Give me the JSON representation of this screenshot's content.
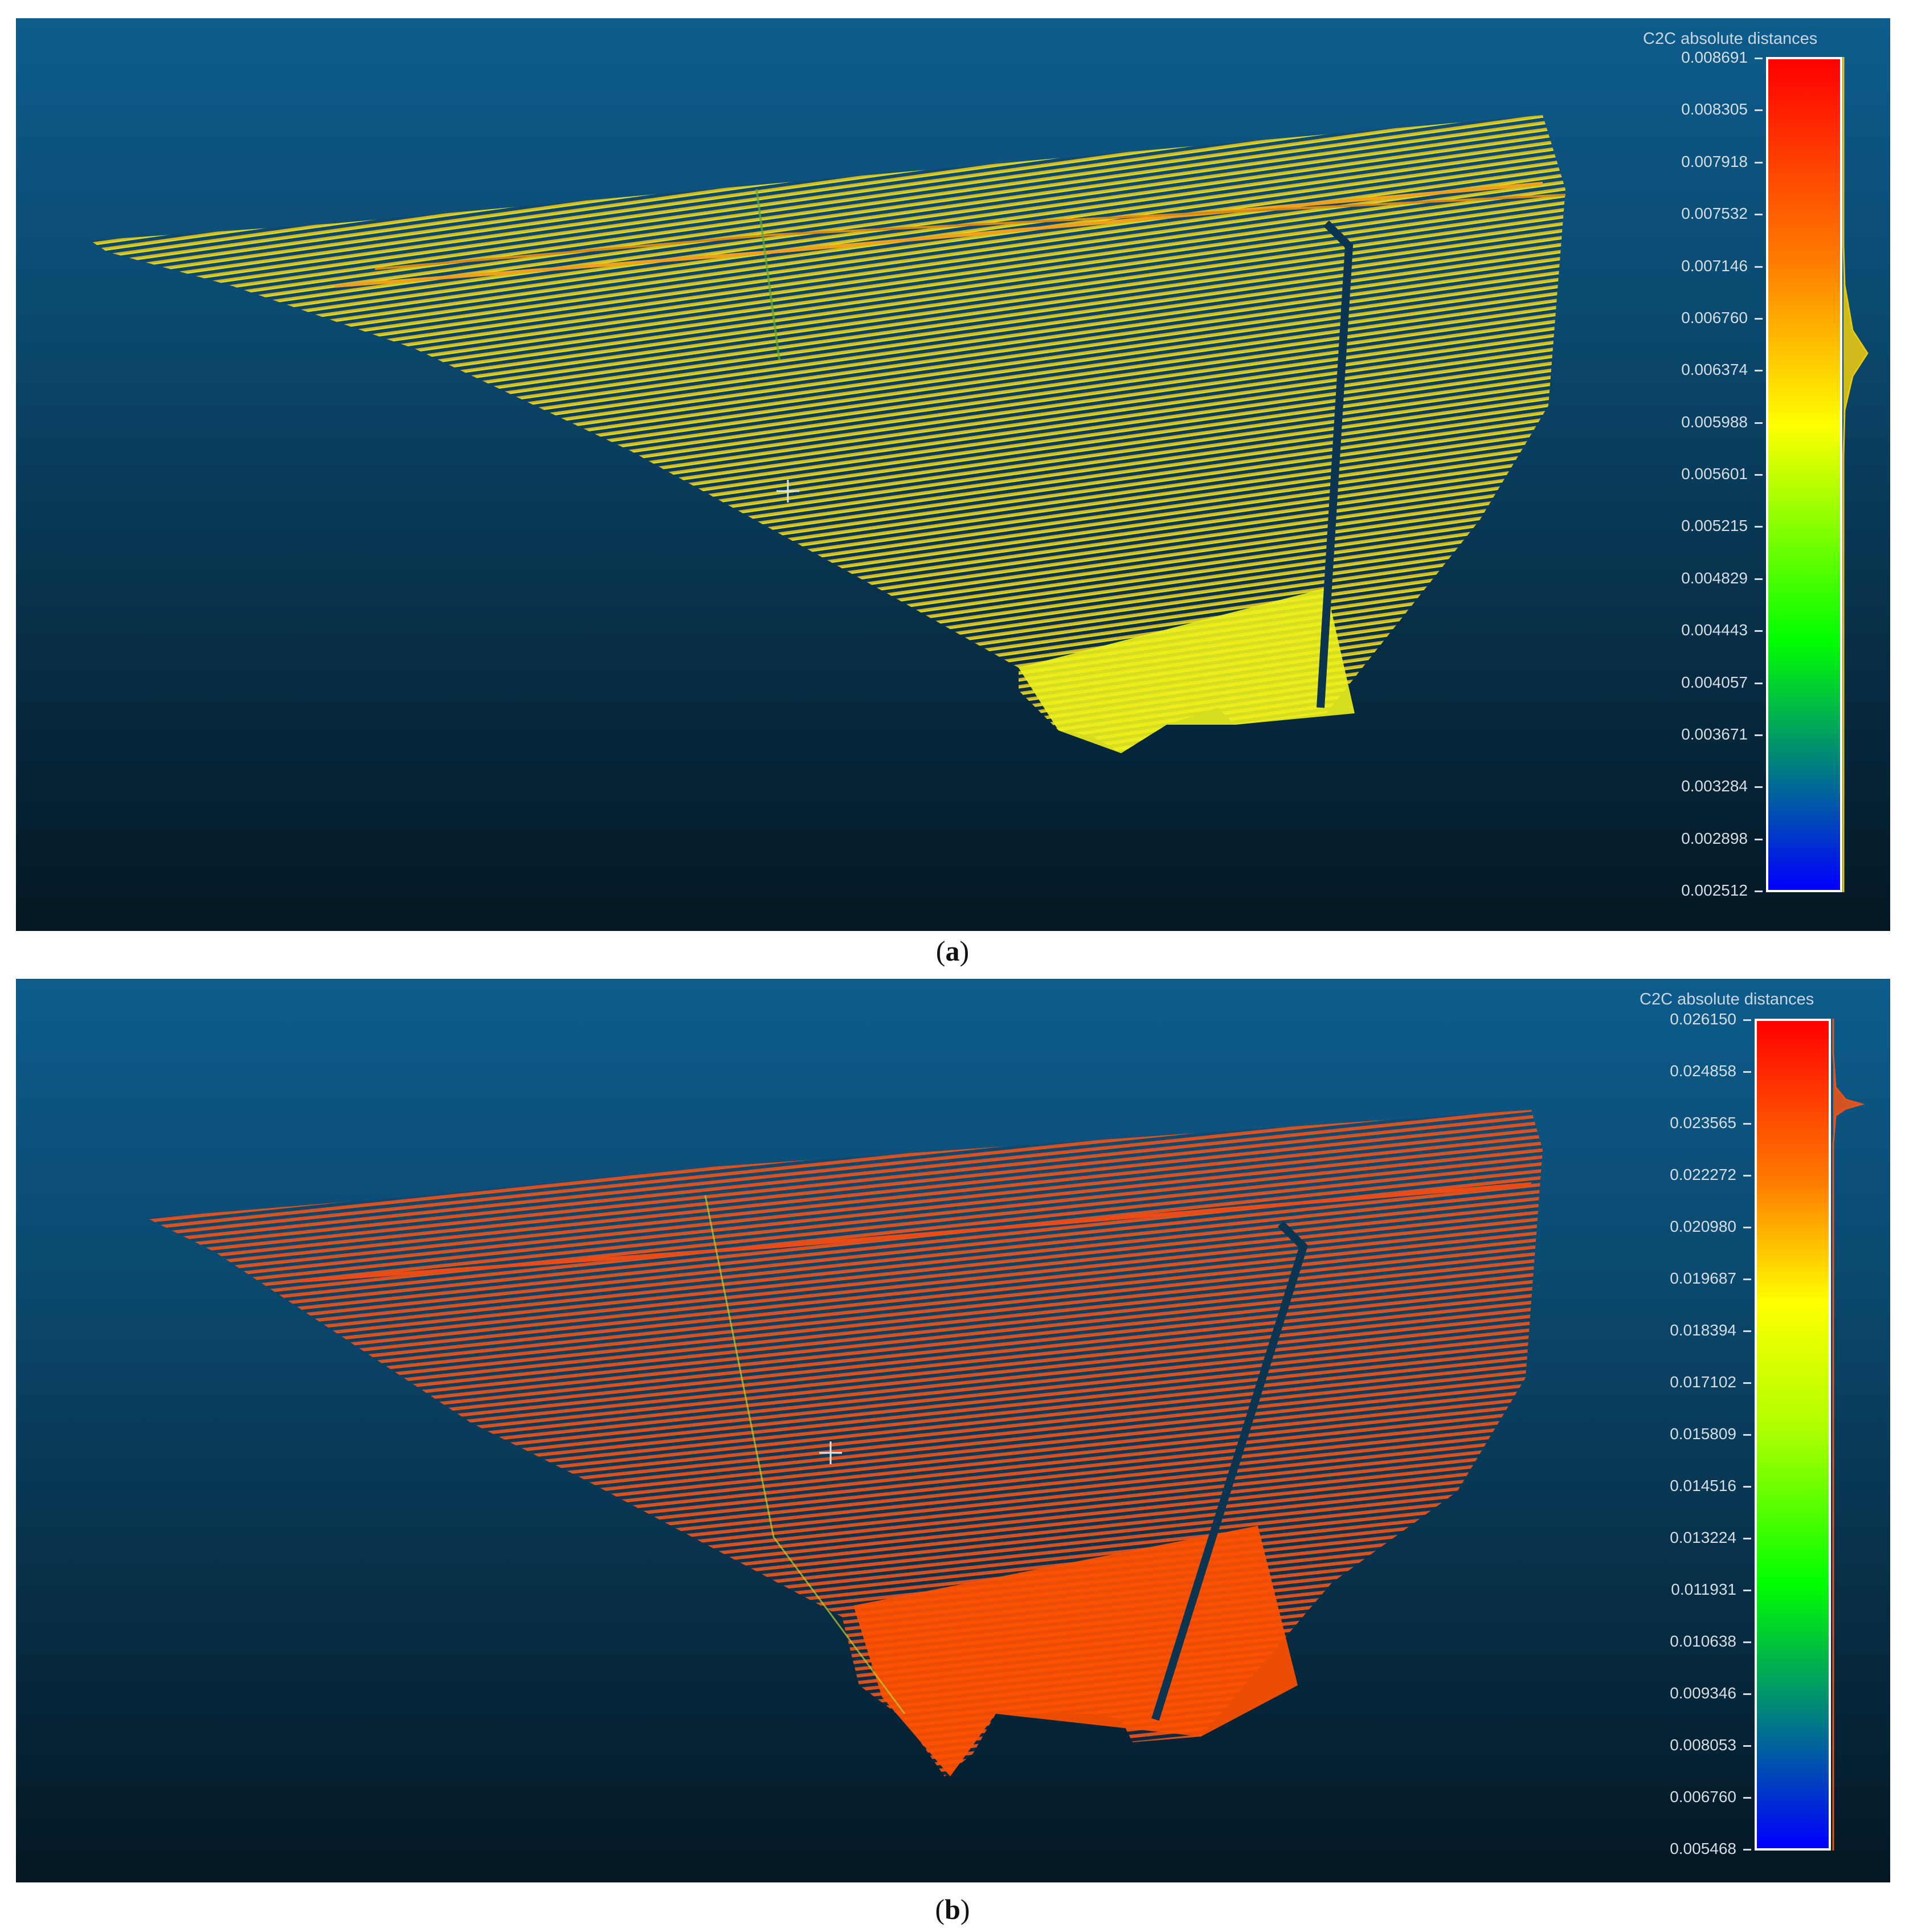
{
  "panels": [
    {
      "id": "a",
      "caption_letter": "a",
      "scale_title": "C2C absolute distances",
      "scale_ticks": [
        "0.008691",
        "0.008305",
        "0.007918",
        "0.007532",
        "0.007146",
        "0.006760",
        "0.006374",
        "0.005988",
        "0.005601",
        "0.005215",
        "0.004829",
        "0.004443",
        "0.004057",
        "0.003671",
        "0.003284",
        "0.002898",
        "0.002512"
      ],
      "dominant_color": "#e8e600",
      "top_color": "#f2a21c"
    },
    {
      "id": "b",
      "caption_letter": "b",
      "scale_title": "C2C absolute distances",
      "scale_ticks": [
        "0.026150",
        "0.024858",
        "0.023565",
        "0.022272",
        "0.020980",
        "0.019687",
        "0.018394",
        "0.017102",
        "0.015809",
        "0.014516",
        "0.013224",
        "0.011931",
        "0.010638",
        "0.009346",
        "0.008053",
        "0.006760",
        "0.005468"
      ],
      "dominant_color": "#ff4a00",
      "top_color": "#e8551c"
    }
  ],
  "colors": {
    "background_top": "#0d5c8c",
    "background_bottom": "#041723",
    "scale_gradient": [
      "#ff0000",
      "#ff8000",
      "#ffff00",
      "#00ff00",
      "#0000ff"
    ]
  }
}
